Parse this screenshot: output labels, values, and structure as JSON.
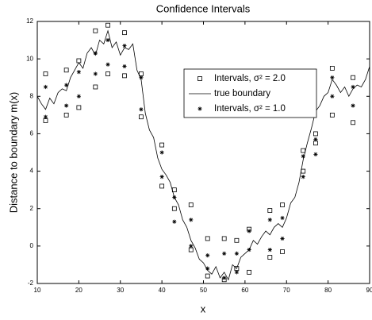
{
  "chart_data": {
    "type": "scatter-line",
    "title": "Confidence Intervals",
    "xlabel": "x",
    "ylabel": "Distance to boundary m(x)",
    "xlim": [
      10,
      90
    ],
    "xticks": [
      10,
      20,
      30,
      40,
      50,
      60,
      70,
      80,
      90
    ],
    "ylim": [
      -2,
      12
    ],
    "yticks": [
      -2,
      0,
      2,
      4,
      6,
      8,
      10,
      12
    ],
    "legend": "northeast",
    "series": [
      {
        "name": "Intervals, σ² = 2.0",
        "color": "#000000",
        "marker": "square",
        "x": [
          12,
          12,
          17,
          17,
          20,
          20,
          24,
          24,
          27,
          27,
          31,
          31,
          35,
          35,
          40,
          40,
          43,
          43,
          47,
          47,
          51,
          51,
          55,
          55,
          58,
          58,
          61,
          61,
          66,
          66,
          69,
          69,
          74,
          74,
          77,
          77,
          81,
          81,
          86,
          86
        ],
        "values": [
          9.2,
          6.7,
          9.4,
          7.0,
          9.9,
          7.4,
          11.5,
          8.5,
          11.8,
          9.2,
          11.4,
          9.1,
          9.2,
          6.9,
          5.4,
          3.2,
          3.0,
          2.0,
          2.2,
          -0.2,
          0.4,
          -1.6,
          0.4,
          -1.8,
          0.3,
          -1.2,
          0.9,
          -1.4,
          1.9,
          -0.6,
          2.2,
          -0.3,
          5.1,
          4.0,
          6.0,
          5.5,
          9.5,
          7.0,
          9.0,
          6.6
        ]
      },
      {
        "name": "true boundary",
        "color": "#000000",
        "marker": "line",
        "x": [
          10,
          11,
          12,
          13,
          14,
          15,
          16,
          17,
          18,
          19,
          20,
          21,
          22,
          23,
          24,
          25,
          26,
          27,
          28,
          29,
          30,
          31,
          32,
          33,
          34,
          35,
          36,
          37,
          38,
          39,
          40,
          41,
          42,
          43,
          44,
          45,
          46,
          47,
          48,
          49,
          50,
          51,
          52,
          53,
          54,
          55,
          56,
          57,
          58,
          59,
          60,
          61,
          62,
          63,
          64,
          65,
          66,
          67,
          68,
          69,
          70,
          71,
          72,
          73,
          74,
          75,
          76,
          77,
          78,
          79,
          80,
          81,
          82,
          83,
          84,
          85,
          86,
          87,
          88,
          89,
          90
        ],
        "values": [
          8.0,
          7.6,
          7.3,
          7.9,
          7.6,
          8.2,
          8.4,
          8.3,
          9.0,
          9.4,
          9.8,
          9.5,
          10.3,
          10.6,
          10.2,
          11.0,
          10.8,
          11.5,
          10.6,
          10.9,
          10.2,
          10.6,
          10.5,
          10.8,
          9.4,
          8.9,
          7.1,
          6.2,
          5.8,
          4.7,
          4.1,
          3.8,
          3.4,
          2.6,
          2.2,
          1.4,
          1.0,
          0.3,
          -0.1,
          -0.7,
          -0.9,
          -1.3,
          -1.5,
          -1.1,
          -1.7,
          -1.4,
          -1.8,
          -1.0,
          -1.2,
          -0.6,
          -0.4,
          -0.2,
          0.3,
          0.1,
          0.5,
          0.8,
          0.6,
          1.0,
          1.2,
          1.0,
          1.5,
          2.3,
          2.6,
          3.4,
          4.6,
          5.5,
          6.3,
          7.2,
          7.5,
          8.0,
          8.2,
          8.9,
          8.6,
          8.2,
          8.5,
          8.0,
          8.4,
          8.6,
          8.5,
          8.9,
          9.6
        ]
      },
      {
        "name": "Intervals, σ² = 1.0",
        "color": "#000000",
        "marker": "asterisk",
        "x": [
          12,
          12,
          17,
          17,
          20,
          20,
          24,
          24,
          27,
          27,
          31,
          31,
          35,
          35,
          40,
          40,
          43,
          43,
          47,
          47,
          51,
          51,
          55,
          55,
          58,
          58,
          61,
          61,
          66,
          66,
          69,
          69,
          74,
          74,
          77,
          77,
          81,
          81,
          86,
          86
        ],
        "values": [
          8.5,
          6.9,
          8.6,
          7.5,
          9.3,
          8.0,
          10.3,
          9.2,
          11.0,
          9.7,
          10.7,
          9.6,
          9.0,
          7.3,
          5.0,
          3.7,
          2.6,
          1.3,
          1.4,
          0.0,
          -0.5,
          -1.2,
          -0.4,
          -1.7,
          -0.4,
          -1.4,
          0.8,
          -0.2,
          1.4,
          -0.2,
          1.5,
          0.4,
          4.8,
          3.7,
          5.7,
          4.9,
          9.0,
          8.0,
          8.5,
          7.5
        ]
      }
    ]
  }
}
